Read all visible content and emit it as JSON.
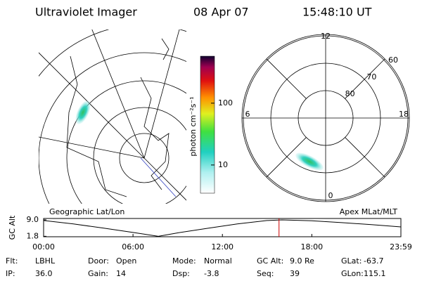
{
  "header": {
    "instrument": "Ultraviolet Imager",
    "date": "08 Apr 07",
    "time": "15:48:10 UT"
  },
  "left_panel": {
    "label": "Geographic Lat/Lon"
  },
  "colorbar": {
    "label": "photon cm⁻²s⁻¹",
    "scale": "log",
    "lim": [
      3.5,
      575
    ],
    "ticks": [
      10,
      100
    ]
  },
  "polar": {
    "label": "Apex MLat/MLT",
    "mlt_labels": [
      {
        "value": 12,
        "label": "12"
      },
      {
        "value": 18,
        "label": "18"
      },
      {
        "value": 6,
        "label": "6"
      },
      {
        "value": 0,
        "label": "0"
      }
    ],
    "lat_ticks": [
      60,
      70,
      80
    ]
  },
  "altitude": {
    "type": "line",
    "ylabel": "GC Alt",
    "color": "#000000",
    "marker_color": "#cc0000",
    "x": [
      0,
      2,
      4,
      6,
      7.7,
      9,
      11,
      13,
      15,
      16,
      18,
      20,
      22,
      23.98
    ],
    "values": [
      8.7,
      7.2,
      5.4,
      3.5,
      1.8,
      3.3,
      5.3,
      7.2,
      8.7,
      9.0,
      8.6,
      7.8,
      6.9,
      5.9
    ],
    "current_hour": 15.8,
    "xlim": [
      0,
      23.98
    ],
    "ylim": [
      1.6,
      9.6
    ],
    "xticks": [
      {
        "value": 0,
        "label": "00:00"
      },
      {
        "value": 6,
        "label": "06:00"
      },
      {
        "value": 12,
        "label": "12:00"
      },
      {
        "value": 18,
        "label": "18:00"
      },
      {
        "value": 23.98,
        "label": "23:59"
      }
    ],
    "yticks": [
      {
        "value": 9.0,
        "label": "9.0"
      },
      {
        "value": 1.8,
        "label": "1.8"
      }
    ]
  },
  "footer": {
    "rows": [
      [
        [
          "Flt:",
          "LBHL"
        ],
        [
          "Door:",
          "Open"
        ],
        [
          "Mode:",
          "Normal"
        ],
        [
          "GC Alt:",
          "9.0 Re"
        ],
        [
          "GLat:",
          "-63.7"
        ]
      ],
      [
        [
          "IP:",
          "36.0"
        ],
        [
          "Gain:",
          "14"
        ],
        [
          "Dsp:",
          "-3.8"
        ],
        [
          "Seq:",
          "39"
        ],
        [
          "GLon:",
          "115.1"
        ]
      ]
    ]
  }
}
